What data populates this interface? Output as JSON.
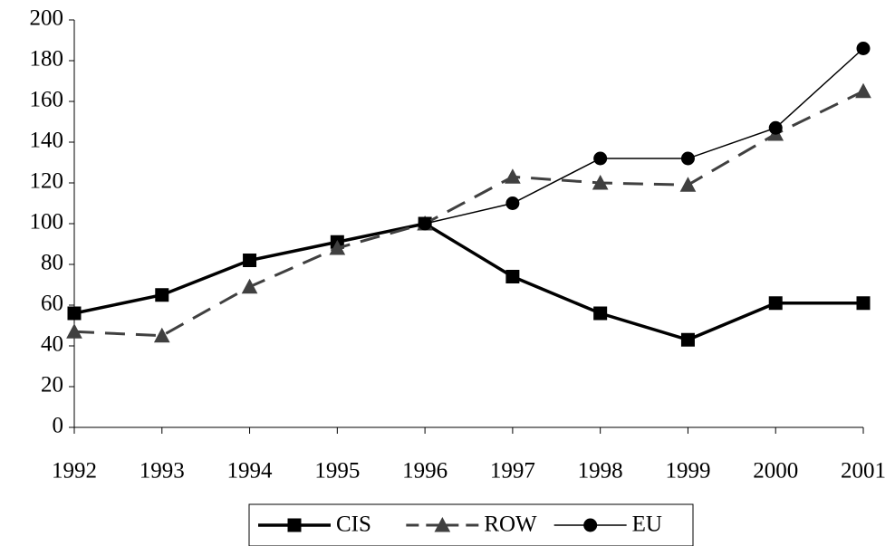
{
  "chart_data": {
    "type": "line",
    "categories": [
      "1992",
      "1993",
      "1994",
      "1995",
      "1996",
      "1997",
      "1998",
      "1999",
      "2000",
      "2001"
    ],
    "series": [
      {
        "name": "CIS",
        "color": "#000000",
        "marker": "square",
        "line_width": 3.5,
        "dash": "none",
        "values": [
          56,
          65,
          82,
          91,
          100,
          74,
          56,
          43,
          61,
          61
        ]
      },
      {
        "name": "ROW",
        "color": "#404040",
        "marker": "triangle",
        "line_width": 3,
        "dash": "22 12",
        "values": [
          47,
          45,
          69,
          88,
          100,
          123,
          120,
          119,
          144,
          165
        ]
      },
      {
        "name": "EU",
        "color": "#000000",
        "marker": "circle",
        "line_width": 1.5,
        "dash": "none",
        "values": [
          null,
          null,
          null,
          null,
          100,
          110,
          132,
          132,
          147,
          186
        ]
      }
    ],
    "ylim": [
      0,
      200
    ],
    "yticks": [
      0,
      20,
      40,
      60,
      80,
      100,
      120,
      140,
      160,
      180,
      200
    ],
    "grid": false,
    "legend": "bottom"
  }
}
